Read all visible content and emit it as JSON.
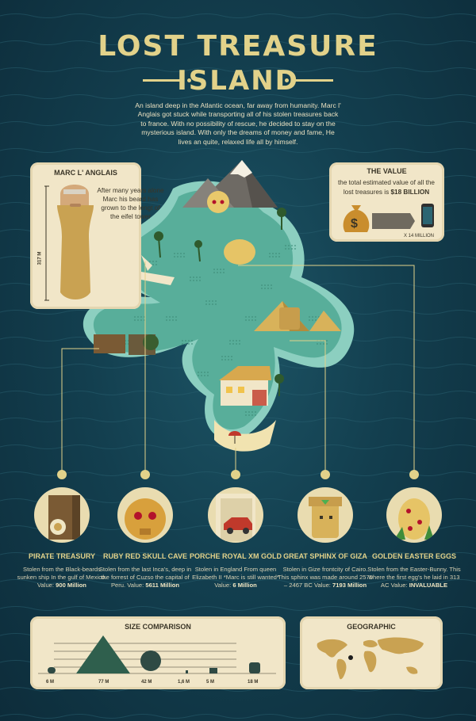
{
  "header": {
    "title_line1": "LOST TREASURE",
    "title_line2": "ISLAND"
  },
  "intro": "An island deep in the Atlantic ocean, far away from humanity. Marc l' Anglais got stuck while transporting all of his stolen treasures back to france. With no possibility of rescue, he decided to stay on the mysterious island. With only the dreams of money and fame, He lives an quite, relaxed life all by himself.",
  "marc_card": {
    "title": "MARC L' ANGLAIS",
    "text": "After many years alone Marc his beard has grown to the lengt of the eifel tower",
    "height_label": "317 M"
  },
  "value_card": {
    "title": "THE VALUE",
    "text_before": "the total estimated value of all the lost treasures is",
    "amount": "$18 BILLION",
    "multiplier": "X 14 MILLION"
  },
  "treasures": [
    {
      "name": "PIRATE TREASURY",
      "desc": "Stolen from the Black-beards sunken ship In the gulf of Mexico.",
      "value_label": "Value:",
      "value": "900 Million"
    },
    {
      "name": "RUBY RED SKULL CAVE",
      "desc": "Stolen from the last Inca's, deep in the forrest of Cuzso the capital of Peru.",
      "value_label": "Value:",
      "value": "5611 Million"
    },
    {
      "name": "PORCHE ROYAL XM GOLD",
      "desc": "Stolen in England From queen Elizabeth II *Marc is still wanted*",
      "value_label": "Value:",
      "value": "6 Million"
    },
    {
      "name": "GREAT SPHINX OF GIZA",
      "desc": "Stolen in Gize frontcity of Cairo. This sphinx was made around 2575 – 2467 BC",
      "value_label": "Value:",
      "value": "7193 Million"
    },
    {
      "name": "GOLDEN EASTER EGGS",
      "desc": "Stolen from the Easter-Bunny. This where the first egg's he laid in 313 AC",
      "value_label": "Value:",
      "value": "INVALUABLE"
    }
  ],
  "size_card": {
    "title": "SIZE COMPARISON",
    "labels": [
      "6 M",
      "77 M",
      "42 M",
      "1,6 M",
      "5 M",
      "18 M"
    ]
  },
  "geo_card": {
    "title": "GEOGRAPHIC"
  },
  "colors": {
    "ocean": "#133f4f",
    "island": "#59b3a2",
    "sand": "#f1e6c8",
    "gold": "#e2d28a"
  }
}
